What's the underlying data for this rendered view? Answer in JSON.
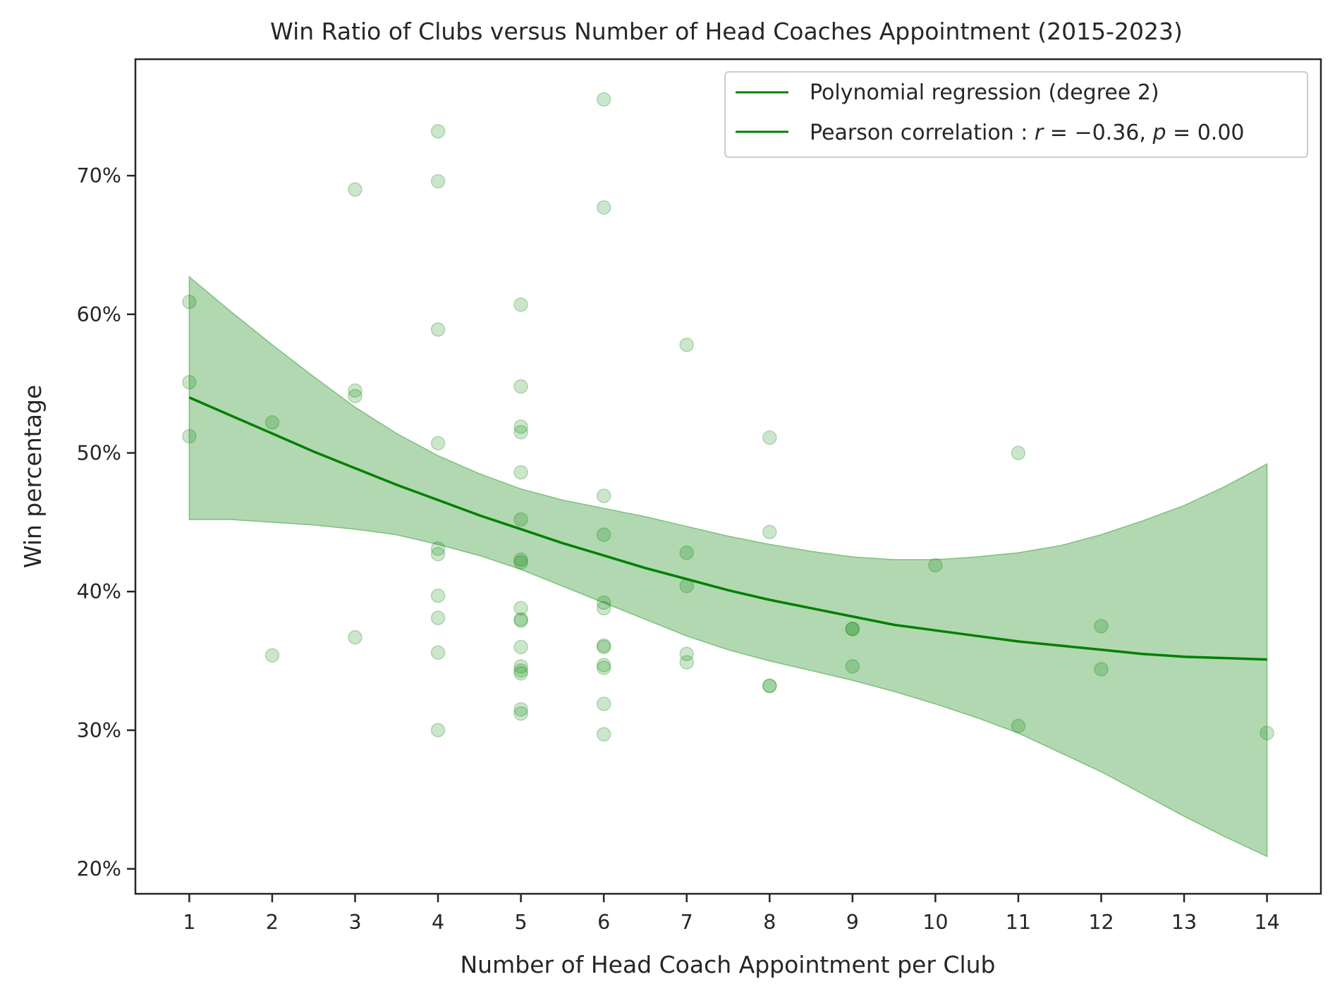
{
  "chart_data": {
    "type": "scatter",
    "title": "Win Ratio of Clubs versus Number of Head Coaches Appointment (2015-2023)",
    "xlabel": "Number of Head Coach Appointment per Club",
    "ylabel": "Win percentage",
    "xlim": [
      0.35,
      14.65
    ],
    "ylim": [
      18.2,
      78.4
    ],
    "xticks": [
      1,
      2,
      3,
      4,
      5,
      6,
      7,
      8,
      9,
      10,
      11,
      12,
      13,
      14
    ],
    "yticks": [
      20,
      30,
      40,
      50,
      60,
      70
    ],
    "ytick_format": "{v}%",
    "grid": false,
    "legend_position": "top-right",
    "colors": {
      "line": "#008000",
      "band_fill": "#b1d8b1",
      "band_edge": "#7fbf7f",
      "points": "#008000",
      "axes": "#262626"
    },
    "legend": [
      {
        "label": "Polynomial regression (degree 2)",
        "color": "#008000"
      },
      {
        "label": "Pearson correlation : ",
        "math_r": "r",
        "math_eq1": " = −0.36, ",
        "math_p": "p",
        "math_eq2": " = 0.00",
        "color": "#008000"
      }
    ],
    "points": [
      [
        1,
        60.9
      ],
      [
        1,
        55.1
      ],
      [
        1,
        51.2
      ],
      [
        2,
        52.2
      ],
      [
        2,
        35.4
      ],
      [
        3,
        69.0
      ],
      [
        3,
        54.5
      ],
      [
        3,
        54.1
      ],
      [
        3,
        36.7
      ],
      [
        4,
        73.2
      ],
      [
        4,
        69.6
      ],
      [
        4,
        58.9
      ],
      [
        4,
        50.7
      ],
      [
        4,
        43.1
      ],
      [
        4,
        42.7
      ],
      [
        4,
        39.7
      ],
      [
        4,
        38.1
      ],
      [
        4,
        35.6
      ],
      [
        4,
        30.0
      ],
      [
        5,
        60.7
      ],
      [
        5,
        54.8
      ],
      [
        5,
        51.9
      ],
      [
        5,
        51.5
      ],
      [
        5,
        48.6
      ],
      [
        5,
        45.2
      ],
      [
        5,
        42.3
      ],
      [
        5,
        42.1
      ],
      [
        5,
        38.8
      ],
      [
        5,
        38.0
      ],
      [
        5,
        37.9
      ],
      [
        5,
        36.0
      ],
      [
        5,
        34.6
      ],
      [
        5,
        34.3
      ],
      [
        5,
        34.1
      ],
      [
        5,
        31.5
      ],
      [
        5,
        31.2
      ],
      [
        6,
        75.5
      ],
      [
        6,
        67.7
      ],
      [
        6,
        46.9
      ],
      [
        6,
        44.1
      ],
      [
        6,
        39.2
      ],
      [
        6,
        38.8
      ],
      [
        6,
        36.1
      ],
      [
        6,
        36.0
      ],
      [
        6,
        34.7
      ],
      [
        6,
        34.5
      ],
      [
        6,
        31.9
      ],
      [
        6,
        29.7
      ],
      [
        7,
        57.8
      ],
      [
        7,
        42.8
      ],
      [
        7,
        40.4
      ],
      [
        7,
        35.5
      ],
      [
        7,
        34.9
      ],
      [
        8,
        51.1
      ],
      [
        8,
        44.3
      ],
      [
        8,
        33.2
      ],
      [
        8,
        33.2
      ],
      [
        9,
        37.3
      ],
      [
        9,
        37.3
      ],
      [
        9,
        34.6
      ],
      [
        10,
        41.9
      ],
      [
        11,
        50.0
      ],
      [
        11,
        30.3
      ],
      [
        12,
        37.5
      ],
      [
        12,
        34.4
      ],
      [
        14,
        29.8
      ]
    ],
    "regression": {
      "x": [
        1,
        1.5,
        2,
        2.5,
        3,
        3.5,
        4,
        4.5,
        5,
        5.5,
        6,
        6.5,
        7,
        7.5,
        8,
        8.5,
        9,
        9.5,
        10,
        10.5,
        11,
        11.5,
        12,
        12.5,
        13,
        13.5,
        14
      ],
      "y": [
        54.0,
        52.7,
        51.4,
        50.1,
        48.9,
        47.7,
        46.6,
        45.5,
        44.5,
        43.5,
        42.6,
        41.7,
        40.9,
        40.1,
        39.4,
        38.8,
        38.2,
        37.6,
        37.2,
        36.8,
        36.4,
        36.1,
        35.8,
        35.5,
        35.3,
        35.2,
        35.1
      ],
      "ci_upper": [
        62.7,
        60.2,
        57.8,
        55.5,
        53.3,
        51.4,
        49.8,
        48.5,
        47.4,
        46.6,
        46.0,
        45.4,
        44.7,
        44.0,
        43.4,
        42.9,
        42.5,
        42.3,
        42.3,
        42.5,
        42.8,
        43.3,
        44.1,
        45.1,
        46.2,
        47.6,
        49.2
      ],
      "ci_lower": [
        45.2,
        45.2,
        45.0,
        44.8,
        44.5,
        44.1,
        43.4,
        42.6,
        41.6,
        40.4,
        39.2,
        38.0,
        36.8,
        35.8,
        35.0,
        34.3,
        33.6,
        32.8,
        31.9,
        30.9,
        29.8,
        28.4,
        27.0,
        25.4,
        23.8,
        22.3,
        20.9
      ]
    }
  }
}
